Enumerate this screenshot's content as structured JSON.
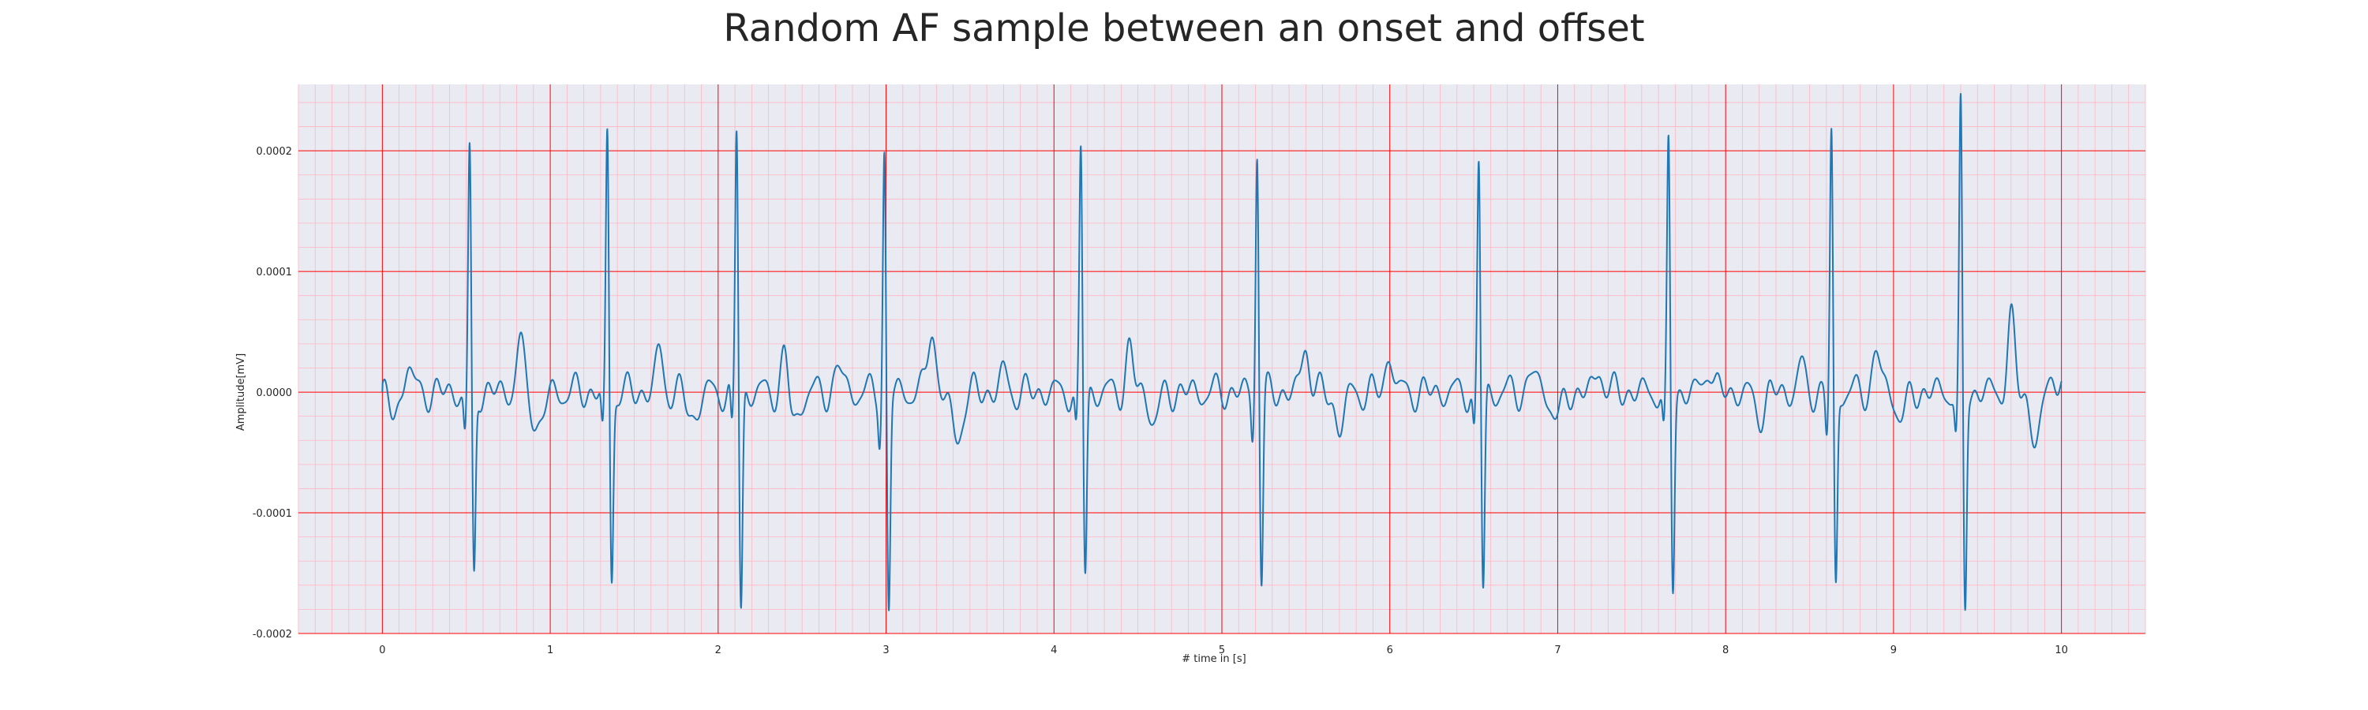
{
  "chart_data": {
    "type": "line",
    "title": "Random AF sample between an onset and offset",
    "xlabel": "# time in [s]",
    "ylabel": "Amplitude[mV]",
    "xlim": [
      -0.5,
      10.5
    ],
    "ylim": [
      -0.0002,
      0.000255
    ],
    "x_ticks": [
      0,
      1,
      2,
      3,
      4,
      5,
      6,
      7,
      8,
      9,
      10
    ],
    "x_tick_labels": [
      "0",
      "1",
      "2",
      "3",
      "4",
      "5",
      "6",
      "7",
      "8",
      "9",
      "10"
    ],
    "y_ticks": [
      0.0002,
      0.0001,
      0.0,
      -0.0001,
      -0.0002
    ],
    "y_tick_labels": [
      "0.0002",
      "0.0001",
      "0.0000",
      "-0.0001",
      "-0.0002"
    ],
    "grid": true,
    "minor_grid": true,
    "x_range": [
      0,
      10
    ],
    "beats": [
      {
        "t": 0.52,
        "peak": 0.000199,
        "trough": -0.000157
      },
      {
        "t": 1.34,
        "peak": 0.000216,
        "trough": -0.000155
      },
      {
        "t": 2.11,
        "peak": 0.000222,
        "trough": -0.000182
      },
      {
        "t": 2.99,
        "peak": 0.0002,
        "trough": -0.000182
      },
      {
        "t": 4.16,
        "peak": 0.000203,
        "trough": -0.00015
      },
      {
        "t": 5.21,
        "peak": 0.000206,
        "trough": -0.000158
      },
      {
        "t": 6.53,
        "peak": 0.000193,
        "trough": -0.000165
      },
      {
        "t": 7.66,
        "peak": 0.000206,
        "trough": -0.000162
      },
      {
        "t": 8.63,
        "peak": 0.000216,
        "trough": -0.000164
      },
      {
        "t": 9.4,
        "peak": 0.000235,
        "trough": -0.000182
      }
    ],
    "baseline_waves": [
      {
        "t": 0.15,
        "v": 2.5e-05
      },
      {
        "t": 0.82,
        "v": 4e-05
      },
      {
        "t": 1.65,
        "v": 3.2e-05
      },
      {
        "t": 2.4,
        "v": 3.6e-05
      },
      {
        "t": 2.72,
        "v": 2.2e-05
      },
      {
        "t": 3.27,
        "v": 5.5e-05
      },
      {
        "t": 3.7,
        "v": 1.5e-05
      },
      {
        "t": 4.45,
        "v": 3.5e-05
      },
      {
        "t": 5.5,
        "v": 4e-05
      },
      {
        "t": 6.0,
        "v": 3.2e-05
      },
      {
        "t": 6.85,
        "v": 1.8e-05
      },
      {
        "t": 7.25,
        "v": 2e-05
      },
      {
        "t": 7.9,
        "v": 2.4e-05
      },
      {
        "t": 8.45,
        "v": 2e-05
      },
      {
        "t": 8.9,
        "v": 3.5e-05
      },
      {
        "t": 9.7,
        "v": 5.8e-05
      },
      {
        "t": 9.95,
        "v": 2e-05
      }
    ],
    "baseline_dips": [
      {
        "t": 0.07,
        "v": -2e-05
      },
      {
        "t": 0.93,
        "v": -3e-05
      },
      {
        "t": 1.85,
        "v": -2.2e-05
      },
      {
        "t": 2.45,
        "v": -2.8e-05
      },
      {
        "t": 3.42,
        "v": -4e-05
      },
      {
        "t": 4.6,
        "v": -2.2e-05
      },
      {
        "t": 5.7,
        "v": -2.8e-05
      },
      {
        "t": 7.0,
        "v": -2.2e-05
      },
      {
        "t": 8.2,
        "v": -1.8e-05
      },
      {
        "t": 9.05,
        "v": -2e-05
      },
      {
        "t": 9.85,
        "v": -4.2e-05
      }
    ],
    "colors": {
      "line": "#1f77b4",
      "plot_background": "#eaeaf2",
      "major_grid": "#ff0000",
      "minor_grid": "#ffb6c1",
      "text": "#262626"
    }
  }
}
